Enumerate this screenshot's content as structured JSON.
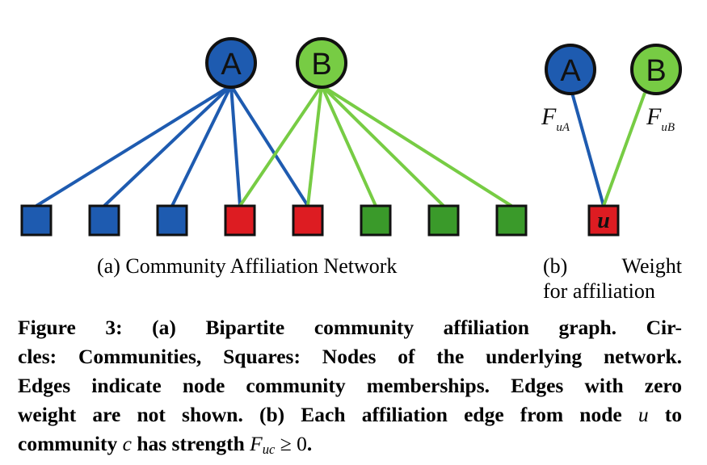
{
  "panel_a": {
    "communities": [
      {
        "id": "A",
        "label": "A",
        "color": "#1e5bb0"
      },
      {
        "id": "B",
        "label": "B",
        "color": "#77cc44"
      }
    ],
    "nodes": [
      {
        "index": 1,
        "community": "A",
        "color": "#1e5bb0"
      },
      {
        "index": 2,
        "community": "A",
        "color": "#1e5bb0"
      },
      {
        "index": 3,
        "community": "A",
        "color": "#1e5bb0"
      },
      {
        "index": 4,
        "community": "A+B",
        "color": "#dd1c22"
      },
      {
        "index": 5,
        "community": "A+B",
        "color": "#dd1c22"
      },
      {
        "index": 6,
        "community": "B",
        "color": "#3a9a2a"
      },
      {
        "index": 7,
        "community": "B",
        "color": "#3a9a2a"
      },
      {
        "index": 8,
        "community": "B",
        "color": "#3a9a2a"
      }
    ],
    "edges": [
      {
        "from": "A",
        "to": 1
      },
      {
        "from": "A",
        "to": 2
      },
      {
        "from": "A",
        "to": 3
      },
      {
        "from": "A",
        "to": 4
      },
      {
        "from": "A",
        "to": 5
      },
      {
        "from": "B",
        "to": 4
      },
      {
        "from": "B",
        "to": 5
      },
      {
        "from": "B",
        "to": 6
      },
      {
        "from": "B",
        "to": 7
      },
      {
        "from": "B",
        "to": 8
      }
    ],
    "subcaption": "(a) Community Affiliation Network"
  },
  "panel_b": {
    "community_a_label": "A",
    "community_b_label": "B",
    "node_label": "u",
    "weight_a": {
      "base": "F",
      "sub": "uA"
    },
    "weight_b": {
      "base": "F",
      "sub": "uB"
    },
    "subcaption_line1_left": "(b)",
    "subcaption_line1_right": "Weight",
    "subcaption_line2": "for affiliation"
  },
  "colors": {
    "community_a": "#1e5bb0",
    "community_b": "#77cc44",
    "node_a": "#1e5bb0",
    "node_both": "#dd1c22",
    "node_b": "#3a9a2a",
    "edge_a": "#1e5bb0",
    "edge_b": "#77cc44",
    "outline": "#111111"
  },
  "caption": {
    "line1_a": "Figure 3:  (a) Bipartite community affiliation graph.  Cir-",
    "line2": "cles: Communities, Squares: Nodes of the underlying network.",
    "line3": "Edges indicate node community memberships. Edges with zero",
    "line4_a": "weight are not shown. (b) Each affiliation edge from node ",
    "line4_math": "u",
    "line4_b": " to",
    "line5_a": "community ",
    "line5_math_c": "c",
    "line5_b": " has strength ",
    "line5_F": "F",
    "line5_sub": "uc",
    "line5_geq": " ≥ 0",
    "line5_end": "."
  }
}
